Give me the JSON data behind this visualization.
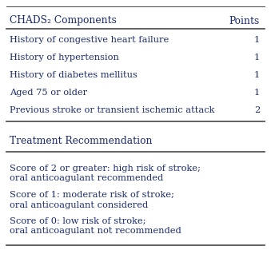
{
  "title_row": [
    "CHADS₂ Components",
    "Points"
  ],
  "components": [
    [
      "History of congestive heart failure",
      "1"
    ],
    [
      "History of hypertension",
      "1"
    ],
    [
      "History of diabetes mellitus",
      "1"
    ],
    [
      "Aged 75 or older",
      "1"
    ],
    [
      "Previous stroke or transient ischemic attack",
      "2"
    ]
  ],
  "treatment_header": "Treatment Recommendation",
  "treatments": [
    [
      "Score of 2 or greater: high risk of stroke;",
      "oral anticoagulant recommended"
    ],
    [
      "Score of 1: moderate risk of stroke;",
      "oral anticoagulant considered"
    ],
    [
      "Score of 0: low risk of stroke;",
      "oral anticoagulant not recommended"
    ]
  ],
  "bg_color": "#ffffff",
  "text_color": "#1a2b6b",
  "line_color": "#555555",
  "font_size": 8.2,
  "header_font_size": 8.8
}
